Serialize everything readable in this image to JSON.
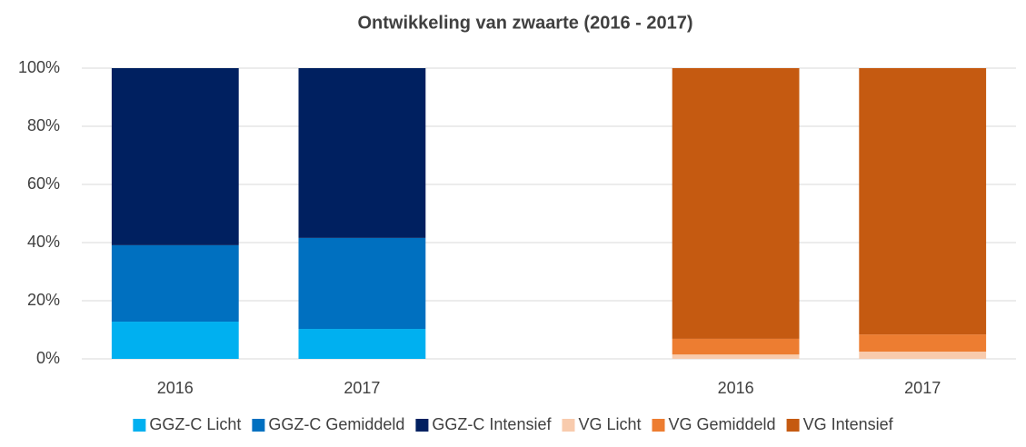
{
  "chart_data": {
    "type": "stacked_bar",
    "title": "Ontwikkeling van zwaarte (2016 - 2017)",
    "categories": [
      "2016",
      "2017",
      null,
      "2016",
      "2017"
    ],
    "series": [
      {
        "name": "GGZ-C Licht",
        "color": "#00b0f0",
        "values": [
          12.8,
          10.3,
          null,
          null,
          null
        ]
      },
      {
        "name": "GGZ-C Gemiddeld",
        "color": "#0070c0",
        "values": [
          26.3,
          31.3,
          null,
          null,
          null
        ]
      },
      {
        "name": "GGZ-C Intensief",
        "color": "#002060",
        "values": [
          60.9,
          58.4,
          null,
          null,
          null
        ]
      },
      {
        "name": "VG Licht",
        "color": "#f8cbad",
        "values": [
          null,
          null,
          null,
          1.5,
          2.5
        ]
      },
      {
        "name": "VG Gemiddeld",
        "color": "#ed7d31",
        "values": [
          null,
          null,
          null,
          5.4,
          5.9
        ]
      },
      {
        "name": "VG Intensief",
        "color": "#c55a11",
        "values": [
          null,
          null,
          null,
          93.1,
          91.6
        ]
      }
    ],
    "ylim": [
      0,
      100
    ],
    "yticks": [
      {
        "value": 0,
        "label": "0%"
      },
      {
        "value": 20,
        "label": "20%"
      },
      {
        "value": 40,
        "label": "40%"
      },
      {
        "value": 60,
        "label": "60%"
      },
      {
        "value": 80,
        "label": "80%"
      },
      {
        "value": 100,
        "label": "100%"
      }
    ],
    "grid": true,
    "legend": "bottom"
  }
}
